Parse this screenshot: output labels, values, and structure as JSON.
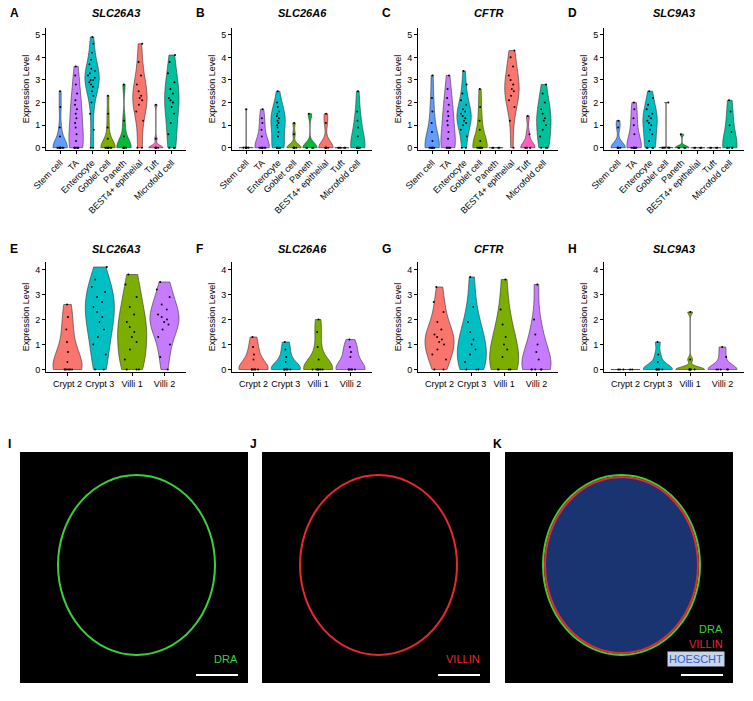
{
  "chart_data": [
    {
      "panel": "A",
      "type": "violin",
      "title": "SLC26A3",
      "ylabel": "Expression Level",
      "categories": [
        "Stem cell",
        "TA",
        "Enterocyte",
        "Goblet cell",
        "Paneth",
        "BEST4+ epithelial",
        "Tuft",
        "Microfold cell"
      ],
      "colors": [
        "#619CFF",
        "#C77CFF",
        "#00BFC4",
        "#7CAE00",
        "#00BA38",
        "#F8766D",
        "#FF61C3",
        "#00C19A"
      ],
      "values": [
        [
          0,
          0,
          0,
          0,
          0,
          0,
          0,
          0,
          0.5,
          0.9,
          1.8,
          2.5
        ],
        [
          0,
          0,
          0,
          0,
          0,
          0,
          0.3,
          0.6,
          0.9,
          1.1,
          1.3,
          1.5,
          1.7,
          1.9,
          2.1,
          2.4,
          2.8,
          3.2,
          3.6
        ],
        [
          0,
          0,
          0.8,
          1.5,
          2,
          2.3,
          2.5,
          2.7,
          2.8,
          2.9,
          3,
          3,
          3.1,
          3.2,
          3.3,
          3.4,
          3.5,
          3.7,
          3.9,
          4.2,
          4.6,
          4.9
        ],
        [
          0,
          0,
          0,
          0,
          0,
          0,
          0,
          0,
          0.4,
          0.9,
          1.5,
          2.3
        ],
        [
          0,
          0,
          0,
          0,
          0,
          0,
          0.5,
          1.2,
          2.8
        ],
        [
          0,
          0,
          1.2,
          1.6,
          1.9,
          2.1,
          2.2,
          2.3,
          2.5,
          2.8,
          3.2,
          3.8,
          4.6
        ],
        [
          0,
          0,
          0,
          0,
          0,
          0,
          0.4,
          1.9
        ],
        [
          0,
          0,
          0,
          0.6,
          1.1,
          1.5,
          1.8,
          2,
          2.1,
          2.2,
          2.4,
          2.6,
          2.9,
          3.3,
          3.8,
          4.1
        ]
      ],
      "ylim": [
        -0.1,
        5.3
      ],
      "yticks": [
        0,
        1,
        2,
        3,
        4,
        5
      ],
      "grid": false
    },
    {
      "panel": "B",
      "type": "violin",
      "title": "SLC26A6",
      "ylabel": "Expression Level",
      "categories": [
        "Stem cell",
        "TA",
        "Enterocyte",
        "Goblet cell",
        "Paneth",
        "BEST4+ epithelial",
        "Tuft",
        "Microfold cell"
      ],
      "colors": [
        "#619CFF",
        "#C77CFF",
        "#00BFC4",
        "#7CAE00",
        "#00BA38",
        "#F8766D",
        "#FF61C3",
        "#00C19A"
      ],
      "values": [
        [
          0,
          0,
          0,
          0,
          0,
          0,
          0,
          1.7
        ],
        [
          0,
          0,
          0,
          0,
          0,
          0,
          0,
          0,
          0.5,
          0.8,
          1.1,
          1.3,
          1.7
        ],
        [
          0,
          0,
          0,
          0,
          0,
          0,
          0.5,
          0.7,
          0.9,
          1,
          1.1,
          1.2,
          1.3,
          1.4,
          1.5,
          1.6,
          1.8,
          2,
          2.5
        ],
        [
          0,
          0,
          0,
          0,
          0,
          0,
          0.6,
          1.1
        ],
        [
          0,
          0,
          0,
          0,
          1.5
        ],
        [
          0,
          0,
          0,
          0,
          0,
          0,
          1.1,
          1.5
        ],
        [
          0,
          0,
          0,
          0,
          0
        ],
        [
          0,
          0,
          0,
          0,
          0,
          0,
          0.5,
          0.9,
          1.2,
          1.6,
          2.5
        ]
      ],
      "ylim": [
        -0.1,
        5.3
      ],
      "yticks": [
        0,
        1,
        2,
        3,
        4,
        5
      ],
      "grid": false
    },
    {
      "panel": "C",
      "type": "violin",
      "title": "CFTR",
      "ylabel": "Expression Level",
      "categories": [
        "Stem cell",
        "TA",
        "Enterocyte",
        "Goblet cell",
        "Paneth",
        "BEST4+ epithelial",
        "Tuft",
        "Microfold cell"
      ],
      "colors": [
        "#619CFF",
        "#C77CFF",
        "#00BFC4",
        "#7CAE00",
        "#00BA38",
        "#F8766D",
        "#FF61C3",
        "#00C19A"
      ],
      "values": [
        [
          0,
          0,
          0,
          0,
          0,
          0,
          0,
          0.3,
          0.7,
          1.1,
          1.6,
          2.2,
          3.2
        ],
        [
          0,
          0,
          0,
          0,
          0,
          0,
          0.4,
          0.7,
          1,
          1.2,
          1.4,
          1.6,
          1.9,
          2.2,
          2.6,
          3.2
        ],
        [
          0,
          0,
          0.5,
          0.8,
          1,
          1.1,
          1.2,
          1.3,
          1.4,
          1.5,
          1.6,
          1.7,
          1.9,
          2.1,
          2.4,
          2.8,
          3.4
        ],
        [
          0,
          0,
          0,
          0,
          0,
          0,
          0,
          0.3,
          0.8,
          1.2,
          1.8,
          2.6
        ],
        [
          0,
          0,
          0,
          0
        ],
        [
          0,
          1.2,
          1.8,
          2.1,
          2.3,
          2.5,
          2.6,
          2.8,
          3,
          3.2,
          3.6,
          4,
          4.3
        ],
        [
          0,
          0,
          0,
          0,
          0,
          0.6,
          1.4
        ],
        [
          0,
          0,
          0,
          0.5,
          0.8,
          1,
          1.2,
          1.3,
          1.5,
          1.7,
          2,
          2.4,
          2.8
        ]
      ],
      "ylim": [
        -0.1,
        5.3
      ],
      "yticks": [
        0,
        1,
        2,
        3,
        4,
        5
      ],
      "grid": false
    },
    {
      "panel": "D",
      "type": "violin",
      "title": "SLC9A3",
      "ylabel": "Expression Level",
      "categories": [
        "Stem cell",
        "TA",
        "Enterocyte",
        "Goblet cell",
        "Paneth",
        "BEST4+ epithelial",
        "Tuft",
        "Microfold cell"
      ],
      "colors": [
        "#619CFF",
        "#C77CFF",
        "#00BFC4",
        "#7CAE00",
        "#00BA38",
        "#F8766D",
        "#FF61C3",
        "#00C19A"
      ],
      "values": [
        [
          0,
          0,
          0,
          0,
          0,
          0,
          0.9,
          1.2
        ],
        [
          0,
          0,
          0,
          0,
          0,
          0,
          0,
          0.6,
          1,
          1.3,
          1.7,
          2
        ],
        [
          0,
          0,
          0,
          0,
          0.3,
          0.6,
          0.8,
          1,
          1.1,
          1.2,
          1.3,
          1.4,
          1.5,
          1.7,
          1.9,
          2.2,
          2.5
        ],
        [
          0,
          0,
          0,
          0,
          0,
          2
        ],
        [
          0,
          0,
          0,
          0,
          0.6
        ],
        [
          0,
          0,
          0,
          0
        ],
        [
          0,
          0,
          0,
          0
        ],
        [
          0,
          0,
          0,
          0,
          0,
          0.7,
          1,
          1.6,
          2.1
        ]
      ],
      "ylim": [
        -0.1,
        5.3
      ],
      "yticks": [
        0,
        1,
        2,
        3,
        4,
        5
      ],
      "grid": false
    },
    {
      "panel": "E",
      "type": "violin",
      "title": "SLC26A3",
      "ylabel": "Expression Level",
      "categories": [
        "Crypt 2",
        "Crypt 3",
        "Villi 1",
        "Villi 2"
      ],
      "colors": [
        "#F8766D",
        "#00BFC4",
        "#7CAE00",
        "#C77CFF"
      ],
      "values": [
        [
          0,
          0,
          0,
          0,
          0,
          0,
          0.3,
          0.7,
          1.1,
          1.6,
          2.1,
          2.6
        ],
        [
          0,
          0,
          0.6,
          1,
          1.3,
          1.6,
          1.9,
          2.1,
          2.3,
          2.5,
          2.7,
          2.9,
          3.1,
          3.3,
          3.6,
          4.1
        ],
        [
          0,
          0,
          0,
          0.4,
          0.8,
          1.1,
          1.3,
          1.5,
          1.7,
          1.9,
          2.2,
          2.5,
          2.9,
          3.4,
          3.8
        ],
        [
          0,
          0.5,
          1,
          1.3,
          1.6,
          1.8,
          1.9,
          2,
          2.1,
          2.2,
          2.4,
          2.6,
          2.9,
          3.2,
          3.5
        ]
      ],
      "ylim": [
        -0.1,
        4.3
      ],
      "yticks": [
        0,
        1,
        2,
        3,
        4
      ],
      "grid": false
    },
    {
      "panel": "F",
      "type": "violin",
      "title": "SLC26A6",
      "ylabel": "Expression Level",
      "categories": [
        "Crypt 2",
        "Crypt 3",
        "Villi 1",
        "Villi 2"
      ],
      "colors": [
        "#F8766D",
        "#00BFC4",
        "#7CAE00",
        "#C77CFF"
      ],
      "values": [
        [
          0,
          0,
          0,
          0,
          0,
          0,
          0.4,
          0.6,
          0.9,
          1.3
        ],
        [
          0,
          0,
          0,
          0,
          0,
          0,
          0.3,
          0.5,
          0.8,
          1.1
        ],
        [
          0,
          0,
          0,
          0,
          0,
          0,
          0,
          0.4,
          0.9,
          1.5,
          2
        ],
        [
          0,
          0,
          0,
          0,
          0,
          0,
          0.5,
          0.7,
          0.9,
          1.2
        ]
      ],
      "ylim": [
        -0.1,
        4.3
      ],
      "yticks": [
        0,
        1,
        2,
        3,
        4
      ],
      "grid": false
    },
    {
      "panel": "G",
      "type": "violin",
      "title": "CFTR",
      "ylabel": "Expression Level",
      "categories": [
        "Crypt 2",
        "Crypt 3",
        "Villi 1",
        "Villi 2"
      ],
      "colors": [
        "#F8766D",
        "#00BFC4",
        "#7CAE00",
        "#C77CFF"
      ],
      "values": [
        [
          0,
          0,
          0.4,
          0.6,
          0.8,
          1,
          1.1,
          1.2,
          1.3,
          1.4,
          1.6,
          1.9,
          2.3,
          2.7,
          3.3
        ],
        [
          0,
          0,
          0,
          0.3,
          0.6,
          0.8,
          1,
          1.2,
          1.5,
          1.9,
          2.5,
          3.7
        ],
        [
          0,
          0,
          0,
          0,
          0.5,
          0.8,
          1,
          1.3,
          1.8,
          2.4,
          3.6
        ],
        [
          0,
          0,
          0,
          0,
          0,
          0.4,
          0.7,
          1,
          1.4,
          2,
          3.4
        ]
      ],
      "ylim": [
        -0.1,
        4.3
      ],
      "yticks": [
        0,
        1,
        2,
        3,
        4
      ],
      "grid": false
    },
    {
      "panel": "H",
      "type": "violin",
      "title": "SLC9A3",
      "ylabel": "Expression Level",
      "categories": [
        "Crypt 2",
        "Crypt 3",
        "Villi 1",
        "Villi 2"
      ],
      "colors": [
        "#F8766D",
        "#00BFC4",
        "#7CAE00",
        "#C77CFF"
      ],
      "values": [
        [
          0,
          0,
          0,
          0,
          0
        ],
        [
          0,
          0,
          0,
          0,
          0,
          0,
          0.3,
          0.6,
          1.1
        ],
        [
          0,
          0,
          0,
          0,
          0,
          0,
          0.4,
          2.3
        ],
        [
          0,
          0,
          0,
          0,
          0,
          0.5,
          0.9
        ]
      ],
      "ylim": [
        -0.1,
        4.3
      ],
      "yticks": [
        0,
        1,
        2,
        3,
        4
      ],
      "grid": false
    }
  ],
  "images": [
    {
      "panel": "I",
      "labels": [
        {
          "text": "DRA",
          "color": "#3ccf3c"
        }
      ]
    },
    {
      "panel": "J",
      "labels": [
        {
          "text": "VILLIN",
          "color": "#e8282e"
        }
      ]
    },
    {
      "panel": "K",
      "labels": [
        {
          "text": "DRA",
          "color": "#3ccf3c"
        },
        {
          "text": "VILLIN",
          "color": "#e8282e"
        },
        {
          "text": "HOESCHT",
          "color": "#2f5fd0",
          "background": "#c8d4e8"
        }
      ]
    }
  ]
}
